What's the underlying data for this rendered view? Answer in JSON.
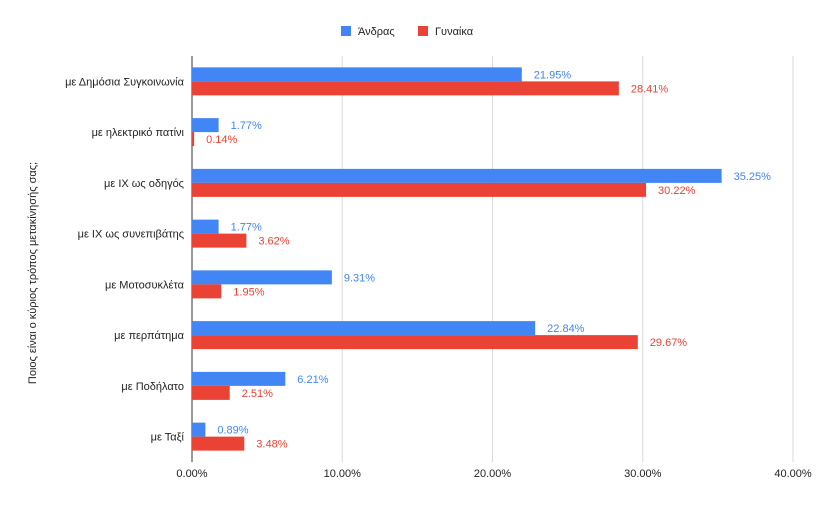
{
  "chart_data": {
    "type": "bar",
    "orientation": "horizontal",
    "title": "",
    "xlabel": "",
    "ylabel": "Ποιος είναι ο κύριος τρόπος μετακίνησής σας;",
    "categories": [
      "με Δημόσια Συγκοινωνία",
      "με ηλεκτρικό πατίνι",
      "με ΙΧ ως οδηγός",
      "με ΙΧ ως συνεπιβάτης",
      "με Μοτοσυκλέτα",
      "με περπάτημα",
      "με Ποδήλατο",
      "με Ταξί"
    ],
    "series": [
      {
        "name": "Άνδρας",
        "color": "#4285f4",
        "values": [
          21.95,
          1.77,
          35.25,
          1.77,
          9.31,
          22.84,
          6.21,
          0.89
        ],
        "labels": [
          "21.95%",
          "1.77%",
          "35.25%",
          "1.77%",
          "9.31%",
          "22.84%",
          "6.21%",
          "0.89%"
        ]
      },
      {
        "name": "Γυναίκα",
        "color": "#ea4335",
        "values": [
          28.41,
          0.14,
          30.22,
          3.62,
          1.95,
          29.67,
          2.51,
          3.48
        ],
        "labels": [
          "28.41%",
          "0.14%",
          "30.22%",
          "3.62%",
          "1.95%",
          "29.67%",
          "2.51%",
          "3.48%"
        ]
      }
    ],
    "xlim": [
      0,
      40
    ],
    "xticks": [
      0,
      10,
      20,
      30,
      40
    ],
    "xtick_labels": [
      "0.00%",
      "10.00%",
      "20.00%",
      "30.00%",
      "40.00%"
    ],
    "grid": true,
    "legend": "top-center"
  }
}
